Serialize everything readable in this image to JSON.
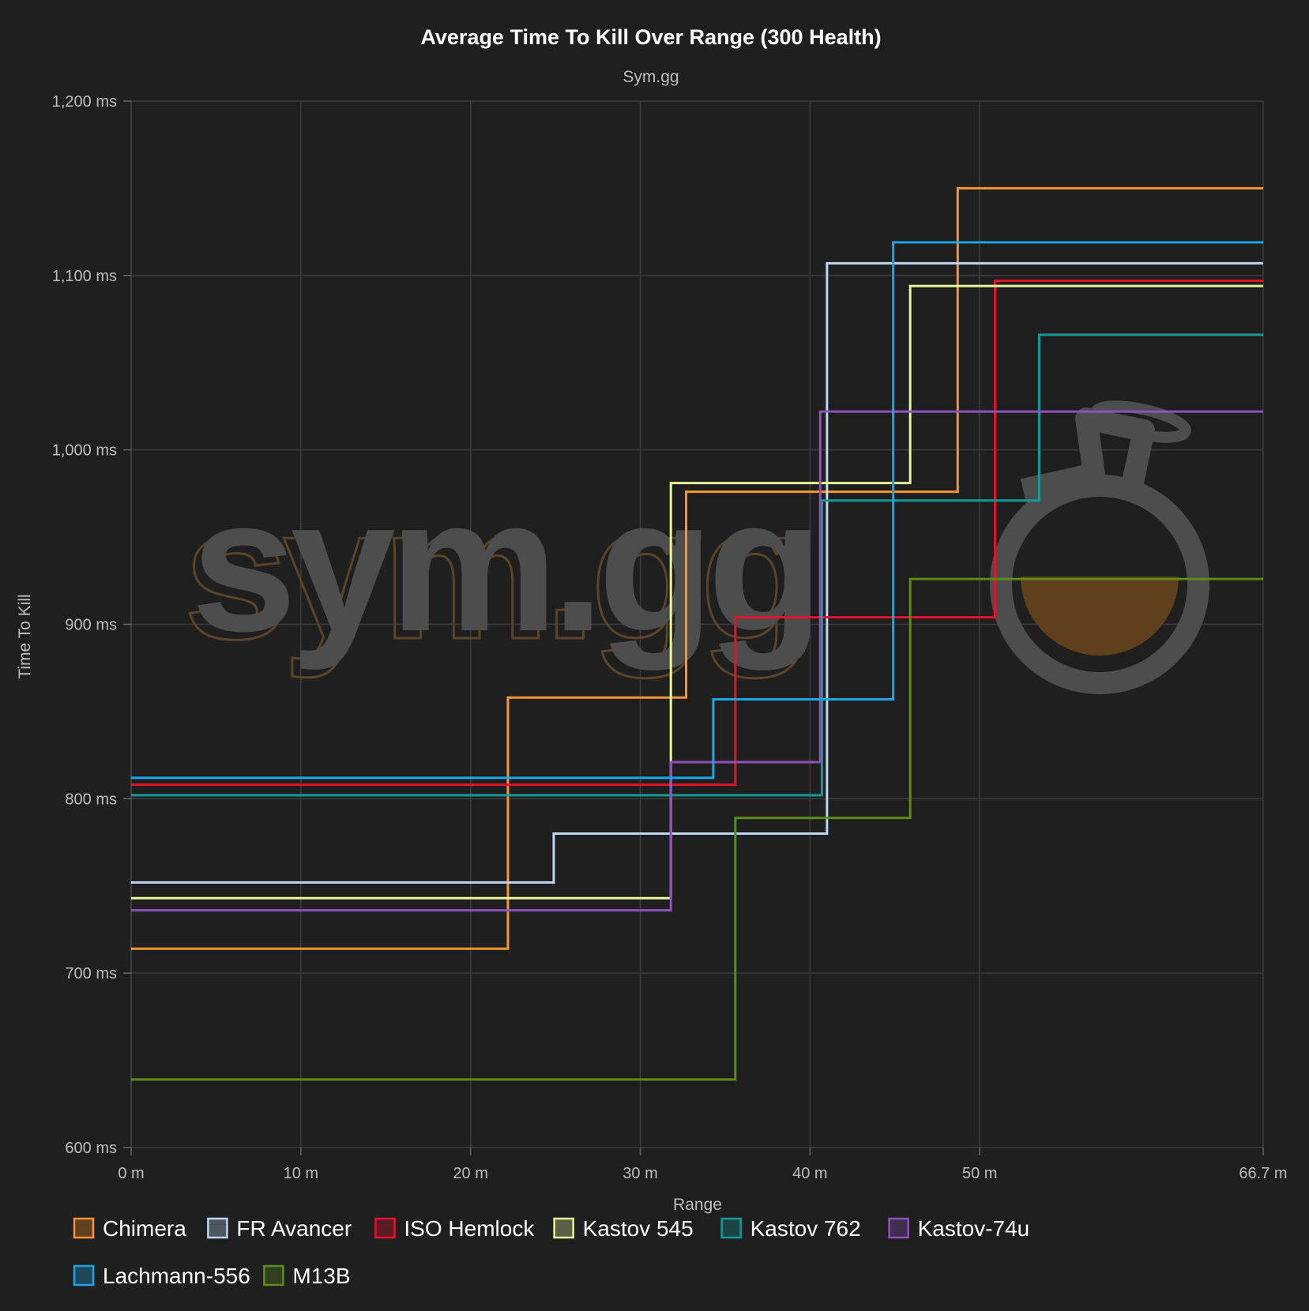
{
  "chart_data": {
    "type": "line",
    "step": true,
    "title": "Average Time To Kill Over Range (300 Health)",
    "subtitle": "Sym.gg",
    "xlabel": "Range",
    "ylabel": "Time To Kill",
    "xlim": [
      0,
      66.7
    ],
    "ylim": [
      600,
      1200
    ],
    "x_ticks": [
      0,
      10,
      20,
      30,
      40,
      50,
      66.7
    ],
    "x_tick_labels": [
      "0 m",
      "10 m",
      "20 m",
      "30 m",
      "40 m",
      "50 m",
      "66.7 m"
    ],
    "y_ticks": [
      600,
      700,
      800,
      900,
      1000,
      1100,
      1200
    ],
    "y_tick_labels": [
      "600 ms",
      "700 ms",
      "800 ms",
      "900 ms",
      "1,000 ms",
      "1,100 ms",
      "1,200 ms"
    ],
    "grid": true,
    "legend_position": "bottom",
    "watermark": "sym.gg",
    "series": [
      {
        "name": "Chimera",
        "color": "#f7962e",
        "points": [
          [
            0,
            714
          ],
          [
            22.2,
            858
          ],
          [
            32.7,
            976
          ],
          [
            48.7,
            1150
          ]
        ]
      },
      {
        "name": "FR Avancer",
        "color": "#bcd6f3",
        "points": [
          [
            0,
            752
          ],
          [
            24.9,
            780
          ],
          [
            41.0,
            1107
          ]
        ]
      },
      {
        "name": "ISO Hemlock",
        "color": "#e3132e",
        "points": [
          [
            0,
            808
          ],
          [
            35.6,
            904
          ],
          [
            50.9,
            1097
          ]
        ]
      },
      {
        "name": "Kastov 545",
        "color": "#e9f59c",
        "points": [
          [
            0,
            743
          ],
          [
            31.8,
            981
          ],
          [
            45.9,
            1094
          ]
        ]
      },
      {
        "name": "Kastov 762",
        "color": "#159a99",
        "points": [
          [
            0,
            802
          ],
          [
            40.7,
            971
          ],
          [
            53.5,
            1066
          ]
        ]
      },
      {
        "name": "Kastov-74u",
        "color": "#8e52b8",
        "points": [
          [
            0,
            736
          ],
          [
            31.8,
            821
          ],
          [
            40.6,
            1022
          ]
        ]
      },
      {
        "name": "Lachmann-556",
        "color": "#19a7e8",
        "points": [
          [
            0,
            812
          ],
          [
            34.3,
            857
          ],
          [
            44.9,
            1119
          ]
        ]
      },
      {
        "name": "M13B",
        "color": "#5a8e18",
        "points": [
          [
            0,
            639
          ],
          [
            35.6,
            789
          ],
          [
            45.9,
            926
          ]
        ]
      }
    ]
  }
}
